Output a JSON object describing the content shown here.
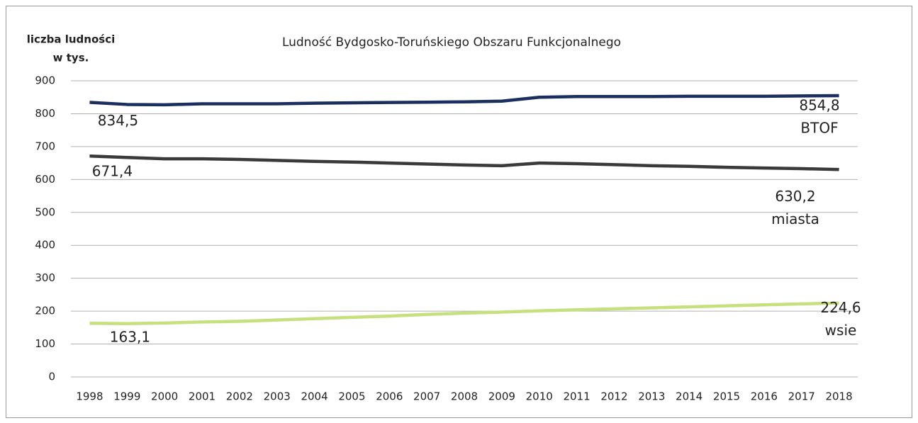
{
  "chart_data": {
    "type": "line",
    "title": "Ludność Bydgosko-Toruńskiego Obszaru Funkcjonalnego",
    "y_label": [
      "liczba ludności",
      "w tys."
    ],
    "categories": [
      "1998",
      "1999",
      "2000",
      "2001",
      "2002",
      "2003",
      "2004",
      "2005",
      "2006",
      "2007",
      "2008",
      "2009",
      "2010",
      "2011",
      "2012",
      "2013",
      "2014",
      "2015",
      "2016",
      "2017",
      "2018"
    ],
    "series": [
      {
        "name": "BTOF",
        "color": "#1b2f5e",
        "values": [
          834.5,
          828,
          827,
          830,
          830,
          830,
          832,
          833,
          834,
          835,
          836,
          838,
          850,
          852,
          852,
          852,
          853,
          853,
          853,
          854,
          854.8
        ],
        "value_labels": [
          "834,5",
          null,
          null,
          null,
          null,
          null,
          null,
          null,
          null,
          null,
          null,
          null,
          null,
          null,
          null,
          null,
          null,
          null,
          null,
          null,
          "854,8"
        ]
      },
      {
        "name": "miasta",
        "color": "#3a3a3a",
        "values": [
          671.4,
          667,
          663,
          663,
          661,
          658,
          655,
          653,
          650,
          647,
          644,
          642,
          650,
          648,
          645,
          642,
          640,
          637,
          635,
          633,
          630.2
        ],
        "value_labels": [
          "671,4",
          null,
          null,
          null,
          null,
          null,
          null,
          null,
          null,
          null,
          null,
          null,
          null,
          null,
          null,
          null,
          null,
          null,
          null,
          null,
          "630,2"
        ]
      },
      {
        "name": "wsie",
        "color": "#c6e07e",
        "values": [
          163.1,
          162,
          164,
          167,
          169,
          173,
          177,
          181,
          185,
          190,
          194,
          197,
          201,
          204,
          207,
          210,
          213,
          216,
          219,
          222,
          224.6
        ],
        "value_labels": [
          "163,1",
          null,
          null,
          null,
          null,
          null,
          null,
          null,
          null,
          null,
          null,
          null,
          null,
          null,
          null,
          null,
          null,
          null,
          null,
          null,
          "224,6"
        ]
      }
    ],
    "ylim": [
      0,
      900
    ],
    "yticks": [
      0,
      100,
      200,
      300,
      400,
      500,
      600,
      700,
      800,
      900
    ],
    "grid": true
  }
}
